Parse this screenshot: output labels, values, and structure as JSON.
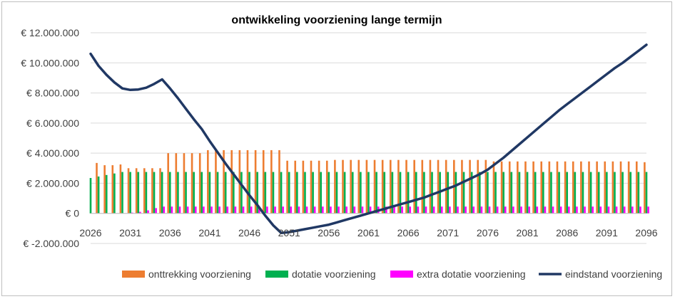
{
  "chart_data": {
    "type": "bar",
    "title": "ontwikkeling voorziening lange termijn",
    "xlabel": "",
    "ylabel": "",
    "ylim": [
      -2000000,
      12000000
    ],
    "y_ticks": [
      -2000000,
      0,
      2000000,
      4000000,
      6000000,
      8000000,
      10000000,
      12000000
    ],
    "y_tick_labels": [
      "€ -2.000.000",
      "€ 0",
      "€ 2.000.000",
      "€ 4.000.000",
      "€ 6.000.000",
      "€ 8.000.000",
      "€ 10.000.000",
      "€ 12.000.000"
    ],
    "x_start": 2026,
    "x_end": 2096,
    "x_tick_labels": [
      "2026",
      "2031",
      "2036",
      "2041",
      "2046",
      "2051",
      "2056",
      "2061",
      "2066",
      "2071",
      "2076",
      "2081",
      "2086",
      "2091",
      "2096"
    ],
    "grid": true,
    "legend_position": "bottom",
    "series": [
      {
        "name": "onttrekking voorziening",
        "type": "bar",
        "color": "#ED7D31",
        "values": [
          0,
          3350000,
          3200000,
          3200000,
          3250000,
          3000000,
          3000000,
          3000000,
          3000000,
          3000000,
          4000000,
          4000000,
          4000000,
          4000000,
          4000000,
          4200000,
          4200000,
          4200000,
          4200000,
          4200000,
          4200000,
          4200000,
          4200000,
          4200000,
          4200000,
          3500000,
          3500000,
          3500000,
          3500000,
          3500000,
          3500000,
          3550000,
          3550000,
          3550000,
          3550000,
          3550000,
          3550000,
          3550000,
          3550000,
          3550000,
          3550000,
          3550000,
          3550000,
          3550000,
          3550000,
          3550000,
          3550000,
          3550000,
          3550000,
          3550000,
          3550000,
          3450000,
          3450000,
          3450000,
          3450000,
          3450000,
          3450000,
          3450000,
          3450000,
          3450000,
          3450000,
          3450000,
          3450000,
          3450000,
          3450000,
          3450000,
          3450000,
          3450000,
          3450000,
          3450000,
          3400000
        ]
      },
      {
        "name": "dotatie voorziening",
        "type": "bar",
        "color": "#00B050",
        "values": [
          2350000,
          2450000,
          2550000,
          2650000,
          2750000,
          2750000,
          2750000,
          2750000,
          2750000,
          2750000,
          2750000,
          2750000,
          2750000,
          2750000,
          2750000,
          2750000,
          2750000,
          2750000,
          2750000,
          2750000,
          2750000,
          2750000,
          2750000,
          2750000,
          2750000,
          2750000,
          2750000,
          2750000,
          2750000,
          2750000,
          2750000,
          2750000,
          2750000,
          2750000,
          2750000,
          2750000,
          2750000,
          2750000,
          2750000,
          2750000,
          2750000,
          2750000,
          2750000,
          2750000,
          2750000,
          2750000,
          2750000,
          2750000,
          2750000,
          2750000,
          2750000,
          2750000,
          2750000,
          2750000,
          2750000,
          2750000,
          2750000,
          2750000,
          2750000,
          2750000,
          2750000,
          2750000,
          2750000,
          2750000,
          2750000,
          2750000,
          2750000,
          2750000,
          2750000,
          2750000,
          2750000
        ]
      },
      {
        "name": "extra dotatie voorziening",
        "type": "bar",
        "color": "#FF00FF",
        "values": [
          0,
          0,
          0,
          0,
          0,
          50000,
          100000,
          200000,
          350000,
          450000,
          450000,
          450000,
          450000,
          450000,
          450000,
          450000,
          450000,
          450000,
          450000,
          450000,
          450000,
          450000,
          450000,
          450000,
          450000,
          450000,
          450000,
          450000,
          450000,
          450000,
          450000,
          450000,
          450000,
          450000,
          450000,
          450000,
          450000,
          450000,
          450000,
          450000,
          450000,
          450000,
          450000,
          450000,
          450000,
          450000,
          450000,
          450000,
          450000,
          450000,
          450000,
          450000,
          450000,
          450000,
          450000,
          450000,
          450000,
          450000,
          450000,
          450000,
          450000,
          450000,
          450000,
          450000,
          450000,
          450000,
          450000,
          450000,
          450000,
          450000,
          450000
        ]
      },
      {
        "name": "eindstand voorziening",
        "type": "line",
        "color": "#203864",
        "points": [
          [
            2026,
            10600000
          ],
          [
            2027,
            9800000
          ],
          [
            2028,
            9200000
          ],
          [
            2029,
            8700000
          ],
          [
            2030,
            8300000
          ],
          [
            2031,
            8200000
          ],
          [
            2032,
            8230000
          ],
          [
            2033,
            8350000
          ],
          [
            2034,
            8600000
          ],
          [
            2035,
            8900000
          ],
          [
            2036,
            8300000
          ],
          [
            2037,
            7650000
          ],
          [
            2038,
            6950000
          ],
          [
            2039,
            6250000
          ],
          [
            2040,
            5600000
          ],
          [
            2041,
            4800000
          ],
          [
            2042,
            4050000
          ],
          [
            2043,
            3300000
          ],
          [
            2044,
            2600000
          ],
          [
            2045,
            1900000
          ],
          [
            2046,
            1200000
          ],
          [
            2047,
            550000
          ],
          [
            2048,
            -150000
          ],
          [
            2049,
            -800000
          ],
          [
            2050,
            -1300000
          ],
          [
            2051,
            -1250000
          ],
          [
            2052,
            -1150000
          ],
          [
            2053,
            -1050000
          ],
          [
            2054,
            -950000
          ],
          [
            2055,
            -850000
          ],
          [
            2056,
            -750000
          ],
          [
            2057,
            -600000
          ],
          [
            2058,
            -450000
          ],
          [
            2059,
            -300000
          ],
          [
            2060,
            -150000
          ],
          [
            2061,
            0
          ],
          [
            2062,
            150000
          ],
          [
            2063,
            300000
          ],
          [
            2064,
            450000
          ],
          [
            2065,
            600000
          ],
          [
            2066,
            750000
          ],
          [
            2067,
            900000
          ],
          [
            2068,
            1050000
          ],
          [
            2069,
            1250000
          ],
          [
            2070,
            1450000
          ],
          [
            2071,
            1650000
          ],
          [
            2072,
            1850000
          ],
          [
            2073,
            2100000
          ],
          [
            2074,
            2350000
          ],
          [
            2075,
            2600000
          ],
          [
            2076,
            2900000
          ],
          [
            2077,
            3300000
          ],
          [
            2078,
            3700000
          ],
          [
            2079,
            4150000
          ],
          [
            2080,
            4600000
          ],
          [
            2081,
            5050000
          ],
          [
            2082,
            5500000
          ],
          [
            2083,
            5950000
          ],
          [
            2084,
            6400000
          ],
          [
            2085,
            6850000
          ],
          [
            2086,
            7250000
          ],
          [
            2087,
            7650000
          ],
          [
            2088,
            8050000
          ],
          [
            2089,
            8450000
          ],
          [
            2090,
            8850000
          ],
          [
            2091,
            9250000
          ],
          [
            2092,
            9650000
          ],
          [
            2093,
            10000000
          ],
          [
            2094,
            10400000
          ],
          [
            2095,
            10800000
          ],
          [
            2096,
            11200000
          ]
        ]
      }
    ]
  }
}
